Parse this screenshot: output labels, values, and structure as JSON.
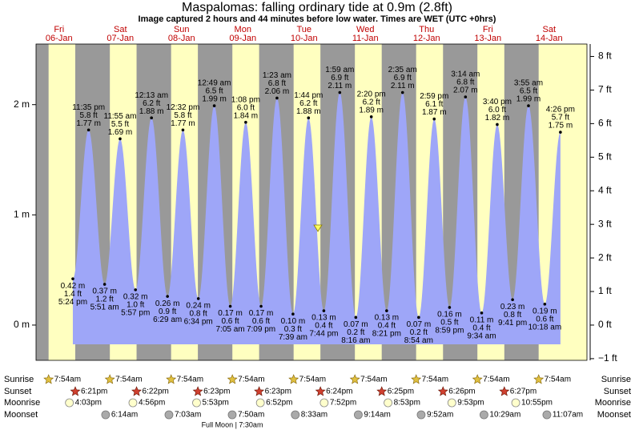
{
  "chart_data": {
    "type": "tide",
    "title": "Maspalomas: falling  ordinary tide at 0.9m (2.8ft)",
    "subtitle": "Image captured 2 hours and 44 minutes before low water. Times are WET (UTC +0hrs)",
    "ylim": [
      -0.32,
      2.55
    ],
    "yticks": [
      {
        "value": 0,
        "label": "0 m"
      },
      {
        "value": 1,
        "label": "1 m"
      },
      {
        "value": 2,
        "label": "2 m"
      }
    ],
    "y2lim": [
      -1.05,
      8.37
    ],
    "y2ticks": [
      {
        "value": -1,
        "label": "−1 ft"
      },
      {
        "value": 0,
        "label": "0 ft"
      },
      {
        "value": 1,
        "label": "1 ft"
      },
      {
        "value": 2,
        "label": "2 ft"
      },
      {
        "value": 3,
        "label": "3 ft"
      },
      {
        "value": 4,
        "label": "4 ft"
      },
      {
        "value": 5,
        "label": "5 ft"
      },
      {
        "value": 6,
        "label": "6 ft"
      },
      {
        "value": 7,
        "label": "7 ft"
      },
      {
        "value": 8,
        "label": "8 ft"
      }
    ],
    "color": "#9ea6f8",
    "rows": [
      "Sunrise",
      "Sunset",
      "Moonrise",
      "Moonset"
    ],
    "note": "Full Moon | 7:30am",
    "days": [
      {
        "weekday": "Fri",
        "date": "06-Jan",
        "sunrise": "7:54am",
        "sunset": "6:21pm",
        "moonrise": "4:03pm",
        "tides": [
          {
            "time": "5:24 pm",
            "m": {
              "value": 0.42,
              "label": "0.42 m"
            },
            "ft": {
              "value": 1.4,
              "label": "1.4 ft"
            }
          },
          {
            "time": "11:35 pm",
            "m": {
              "value": 1.77,
              "label": "1.77 m"
            },
            "ft": {
              "value": 5.8,
              "label": "5.8 ft"
            }
          }
        ]
      },
      {
        "weekday": "Sat",
        "date": "07-Jan",
        "sunrise": "7:54am",
        "sunset": "6:22pm",
        "moonrise": "4:56pm",
        "moonset": "6:14am",
        "tides": [
          {
            "time": "5:51 am",
            "m": {
              "value": 0.37,
              "label": "0.37 m"
            },
            "ft": {
              "value": 1.2,
              "label": "1.2 ft"
            }
          },
          {
            "time": "11:55 am",
            "m": {
              "value": 1.69,
              "label": "1.69 m"
            },
            "ft": {
              "value": 5.5,
              "label": "5.5 ft"
            }
          },
          {
            "time": "5:57 pm",
            "m": {
              "value": 0.32,
              "label": "0.32 m"
            },
            "ft": {
              "value": 1.0,
              "label": "1.0 ft"
            }
          }
        ]
      },
      {
        "weekday": "Sun",
        "date": "08-Jan",
        "sunrise": "7:54am",
        "sunset": "6:23pm",
        "moonrise": "5:53pm",
        "moonset": "7:03am",
        "tides": [
          {
            "time": "12:13 am",
            "m": {
              "value": 1.88,
              "label": "1.88 m"
            },
            "ft": {
              "value": 6.2,
              "label": "6.2 ft"
            }
          },
          {
            "time": "6:29 am",
            "m": {
              "value": 0.26,
              "label": "0.26 m"
            },
            "ft": {
              "value": 0.9,
              "label": "0.9 ft"
            }
          },
          {
            "time": "12:32 pm",
            "m": {
              "value": 1.77,
              "label": "1.77 m"
            },
            "ft": {
              "value": 5.8,
              "label": "5.8 ft"
            }
          },
          {
            "time": "6:34 pm",
            "m": {
              "value": 0.24,
              "label": "0.24 m"
            },
            "ft": {
              "value": 0.8,
              "label": "0.8 ft"
            }
          }
        ]
      },
      {
        "weekday": "Mon",
        "date": "09-Jan",
        "sunrise": "7:54am",
        "sunset": "6:23pm",
        "moonrise": "6:52pm",
        "moonset": "7:50am",
        "tides": [
          {
            "time": "12:49 am",
            "m": {
              "value": 1.99,
              "label": "1.99 m"
            },
            "ft": {
              "value": 6.5,
              "label": "6.5 ft"
            }
          },
          {
            "time": "7:05 am",
            "m": {
              "value": 0.17,
              "label": "0.17 m"
            },
            "ft": {
              "value": 0.6,
              "label": "0.6 ft"
            }
          },
          {
            "time": "1:08 pm",
            "m": {
              "value": 1.84,
              "label": "1.84 m"
            },
            "ft": {
              "value": 6.0,
              "label": "6.0 ft"
            }
          },
          {
            "time": "7:09 pm",
            "m": {
              "value": 0.17,
              "label": "0.17 m"
            },
            "ft": {
              "value": 0.6,
              "label": "0.6 ft"
            }
          }
        ]
      },
      {
        "weekday": "Tue",
        "date": "10-Jan",
        "sunrise": "7:54am",
        "sunset": "6:24pm",
        "moonrise": "7:52pm",
        "moonset": "8:33am",
        "tides": [
          {
            "time": "1:23 am",
            "m": {
              "value": 2.06,
              "label": "2.06 m"
            },
            "ft": {
              "value": 6.8,
              "label": "6.8 ft"
            }
          },
          {
            "time": "7:39 am",
            "m": {
              "value": 0.1,
              "label": "0.10 m"
            },
            "ft": {
              "value": 0.3,
              "label": "0.3 ft"
            }
          },
          {
            "time": "1:44 pm",
            "m": {
              "value": 1.88,
              "label": "1.88 m"
            },
            "ft": {
              "value": 6.2,
              "label": "6.2 ft"
            }
          },
          {
            "time": "7:44 pm",
            "m": {
              "value": 0.13,
              "label": "0.13 m"
            },
            "ft": {
              "value": 0.4,
              "label": "0.4 ft"
            }
          }
        ]
      },
      {
        "weekday": "Wed",
        "date": "11-Jan",
        "sunrise": "7:54am",
        "sunset": "6:25pm",
        "moonrise": "8:53pm",
        "moonset": "9:14am",
        "tides": [
          {
            "time": "1:59 am",
            "m": {
              "value": 2.11,
              "label": "2.11 m"
            },
            "ft": {
              "value": 6.9,
              "label": "6.9 ft"
            }
          },
          {
            "time": "8:16 am",
            "m": {
              "value": 0.07,
              "label": "0.07 m"
            },
            "ft": {
              "value": 0.2,
              "label": "0.2 ft"
            }
          },
          {
            "time": "2:20 pm",
            "m": {
              "value": 1.89,
              "label": "1.89 m"
            },
            "ft": {
              "value": 6.2,
              "label": "6.2 ft"
            }
          },
          {
            "time": "8:21 pm",
            "m": {
              "value": 0.13,
              "label": "0.13 m"
            },
            "ft": {
              "value": 0.4,
              "label": "0.4 ft"
            }
          }
        ]
      },
      {
        "weekday": "Thu",
        "date": "12-Jan",
        "sunrise": "7:54am",
        "sunset": "6:26pm",
        "moonrise": "9:53pm",
        "moonset": "9:52am",
        "tides": [
          {
            "time": "2:35 am",
            "m": {
              "value": 2.11,
              "label": "2.11 m"
            },
            "ft": {
              "value": 6.9,
              "label": "6.9 ft"
            }
          },
          {
            "time": "8:54 am",
            "m": {
              "value": 0.07,
              "label": "0.07 m"
            },
            "ft": {
              "value": 0.2,
              "label": "0.2 ft"
            }
          },
          {
            "time": "2:59 pm",
            "m": {
              "value": 1.87,
              "label": "1.87 m"
            },
            "ft": {
              "value": 6.1,
              "label": "6.1 ft"
            }
          },
          {
            "time": "8:59 pm",
            "m": {
              "value": 0.16,
              "label": "0.16 m"
            },
            "ft": {
              "value": 0.5,
              "label": "0.5 ft"
            }
          }
        ]
      },
      {
        "weekday": "Fri",
        "date": "13-Jan",
        "sunrise": "7:54am",
        "sunset": "6:27pm",
        "moonrise": "10:55pm",
        "moonset": "10:29am",
        "tides": [
          {
            "time": "3:14 am",
            "m": {
              "value": 2.07,
              "label": "2.07 m"
            },
            "ft": {
              "value": 6.8,
              "label": "6.8 ft"
            }
          },
          {
            "time": "9:34 am",
            "m": {
              "value": 0.11,
              "label": "0.11 m"
            },
            "ft": {
              "value": 0.4,
              "label": "0.4 ft"
            }
          },
          {
            "time": "3:40 pm",
            "m": {
              "value": 1.82,
              "label": "1.82 m"
            },
            "ft": {
              "value": 6.0,
              "label": "6.0 ft"
            }
          },
          {
            "time": "9:41 pm",
            "m": {
              "value": 0.23,
              "label": "0.23 m"
            },
            "ft": {
              "value": 0.8,
              "label": "0.8 ft"
            }
          }
        ]
      },
      {
        "weekday": "Sat",
        "date": "14-Jan",
        "sunrise": "7:54am",
        "moonset": "11:07am",
        "tides": [
          {
            "time": "3:55 am",
            "m": {
              "value": 1.99,
              "label": "1.99 m"
            },
            "ft": {
              "value": 6.5,
              "label": "6.5 ft"
            }
          },
          {
            "time": "10:18 am",
            "m": {
              "value": 0.19,
              "label": "0.19 m"
            },
            "ft": {
              "value": 0.6,
              "label": "0.6 ft"
            }
          },
          {
            "time": "4:26 pm",
            "m": {
              "value": 1.75,
              "label": "1.75 m"
            },
            "ft": {
              "value": 5.7,
              "label": "5.7 ft"
            }
          }
        ]
      }
    ]
  }
}
